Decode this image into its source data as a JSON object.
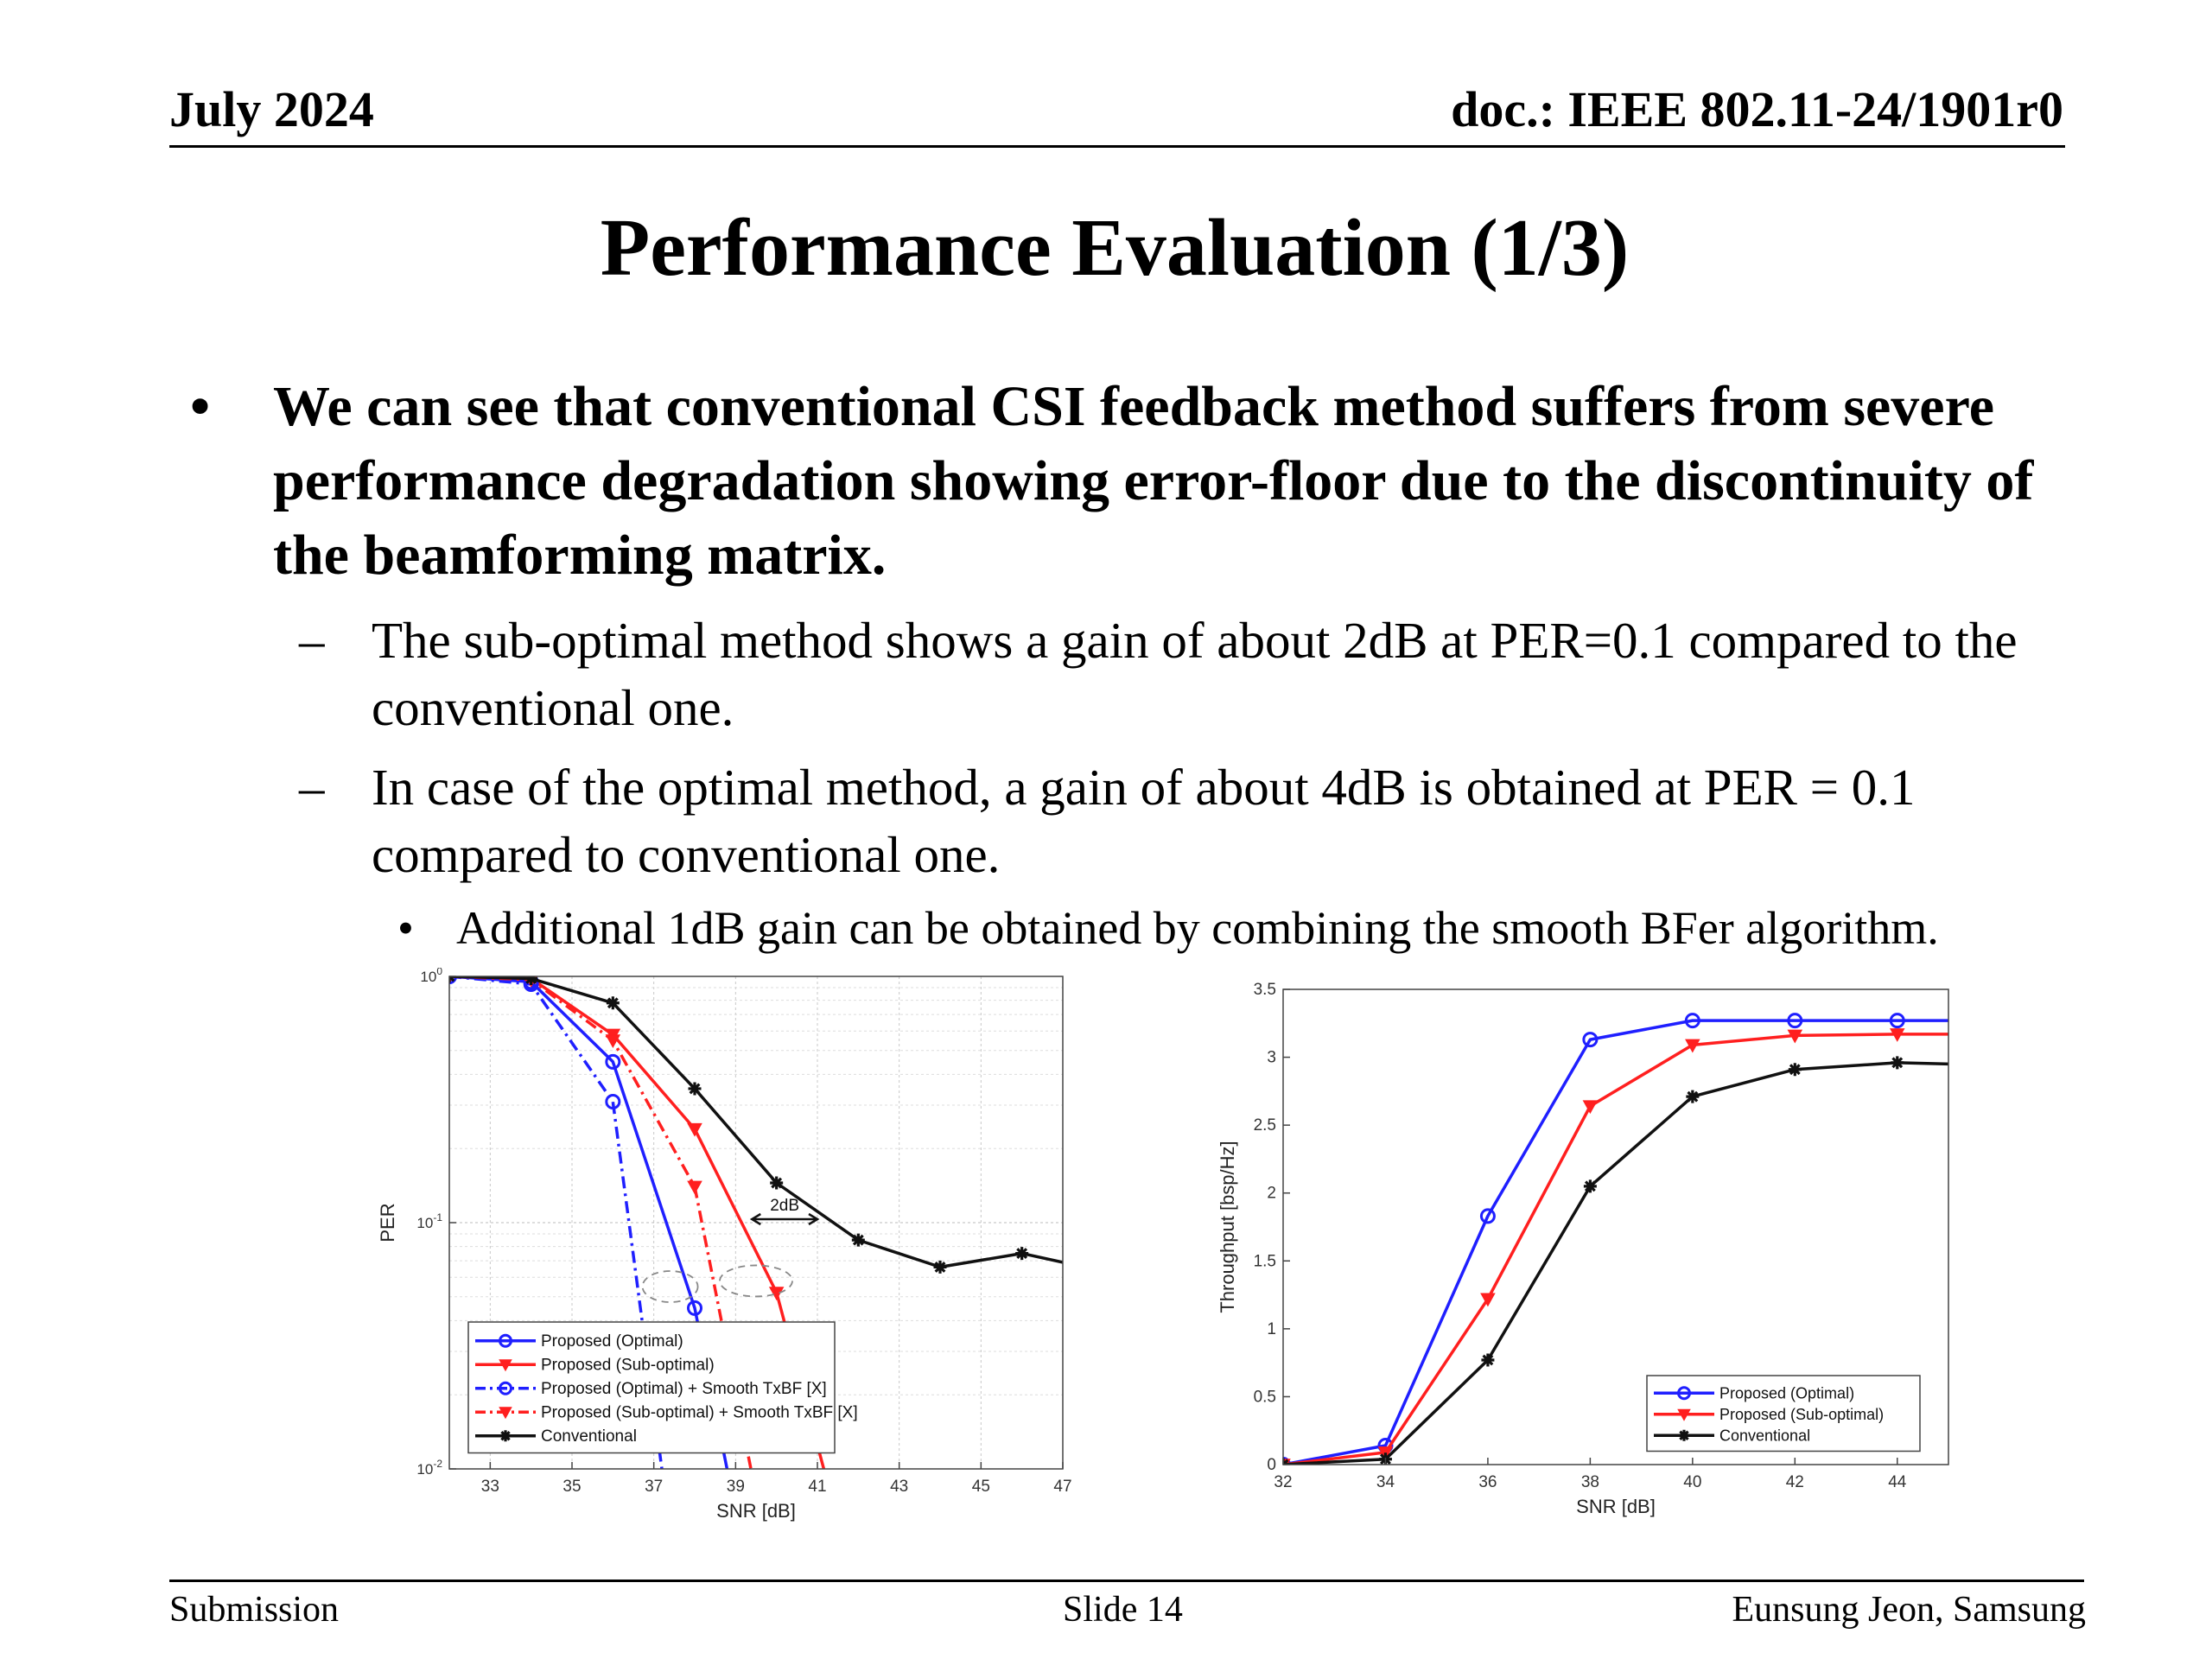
{
  "header": {
    "date": "July 2024",
    "doc_id": "doc.: IEEE 802.11-24/1901r0"
  },
  "title": "Performance Evaluation (1/3)",
  "bullets": {
    "main": "We can see that conventional CSI feedback method suffers from severe performance degradation showing error-floor due to the discontinuity of the beamforming matrix.",
    "sub1": "The sub-optimal method shows a gain of about 2dB at PER=0.1 compared to the conventional one.",
    "sub2": "In case of the optimal method, a gain of about 4dB is obtained at PER = 0.1 compared to conventional one.",
    "subsub": "Additional 1dB gain can be obtained by combining the smooth BFer algorithm."
  },
  "chart_data": [
    {
      "type": "line",
      "xlabel": "SNR [dB]",
      "ylabel": "PER",
      "y_scale": "log",
      "xlim": [
        32,
        47
      ],
      "ylim": [
        0.01,
        1
      ],
      "x_ticks": [
        33,
        35,
        37,
        39,
        41,
        43,
        45,
        47
      ],
      "y_ticks": [
        0.01,
        0.1,
        1
      ],
      "y_tick_labels": [
        "10^-2",
        "10^-1",
        "10^0"
      ],
      "grid": true,
      "legend_position": "bottom-left",
      "annotations": [
        "2dB"
      ],
      "series": [
        {
          "name": "Proposed (Optimal)",
          "color": "#1f1fff",
          "marker": "circle",
          "dash": "solid",
          "x": [
            32,
            34,
            36,
            38,
            40
          ],
          "y": [
            1.0,
            0.95,
            0.45,
            0.045,
            0.001
          ]
        },
        {
          "name": "Proposed (Sub-optimal)",
          "color": "#ff1f1f",
          "marker": "triangle-down",
          "dash": "solid",
          "x": [
            32,
            34,
            36,
            38,
            40,
            42
          ],
          "y": [
            1.0,
            0.98,
            0.58,
            0.24,
            0.052,
            0.003
          ]
        },
        {
          "name": "Proposed (Optimal) + Smooth TxBF [X]",
          "color": "#1f1fff",
          "marker": "circle",
          "dash": "dashdot",
          "x": [
            32,
            34,
            36,
            38
          ],
          "y": [
            1.0,
            0.93,
            0.31,
            0.001
          ]
        },
        {
          "name": "Proposed (Sub-optimal) + Smooth TxBF [X]",
          "color": "#ff1f1f",
          "marker": "triangle-down",
          "dash": "dashdot",
          "x": [
            32,
            34,
            36,
            38,
            40
          ],
          "y": [
            1.0,
            0.97,
            0.55,
            0.14,
            0.003
          ]
        },
        {
          "name": "Conventional",
          "color": "#111111",
          "marker": "star",
          "dash": "solid",
          "x": [
            32,
            34,
            36,
            38,
            40,
            42,
            44,
            46,
            47
          ],
          "y": [
            1.0,
            0.98,
            0.78,
            0.35,
            0.145,
            0.085,
            0.066,
            0.075,
            0.069
          ]
        }
      ]
    },
    {
      "type": "line",
      "xlabel": "SNR [dB]",
      "ylabel": "Throughput [bsp/Hz]",
      "xlim": [
        32,
        45
      ],
      "ylim": [
        0,
        3.5
      ],
      "x_ticks": [
        32,
        34,
        36,
        38,
        40,
        42,
        44
      ],
      "y_ticks": [
        0,
        0.5,
        1,
        1.5,
        2,
        2.5,
        3,
        3.5
      ],
      "grid": false,
      "legend_position": "bottom-right",
      "series": [
        {
          "name": "Proposed (Optimal)",
          "color": "#1f1fff",
          "marker": "circle",
          "dash": "solid",
          "x": [
            32,
            34,
            36,
            38,
            40,
            42,
            44,
            45
          ],
          "y": [
            0.0,
            0.14,
            1.83,
            3.13,
            3.27,
            3.27,
            3.27,
            3.27
          ]
        },
        {
          "name": "Proposed (Sub-optimal)",
          "color": "#ff1f1f",
          "marker": "triangle-down",
          "dash": "solid",
          "x": [
            32,
            34,
            36,
            38,
            40,
            42,
            44,
            45
          ],
          "y": [
            0.0,
            0.09,
            1.22,
            2.64,
            3.09,
            3.16,
            3.17,
            3.17
          ]
        },
        {
          "name": "Conventional",
          "color": "#111111",
          "marker": "star",
          "dash": "solid",
          "x": [
            32,
            34,
            36,
            38,
            40,
            42,
            44,
            45
          ],
          "y": [
            0.0,
            0.04,
            0.77,
            2.05,
            2.71,
            2.91,
            2.96,
            2.95
          ]
        }
      ]
    }
  ],
  "footer": {
    "left": "Submission",
    "center": "Slide 14",
    "right": "Eunsung Jeon, Samsung"
  }
}
